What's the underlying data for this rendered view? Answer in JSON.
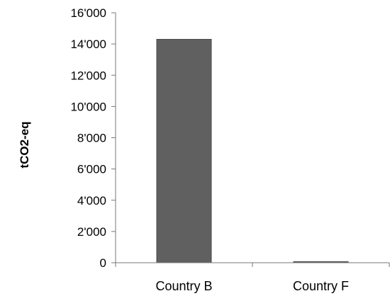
{
  "chart_data": {
    "type": "bar",
    "title": "",
    "xlabel": "",
    "ylabel": "tCO2-eq",
    "categories": [
      "Country B",
      "Country F"
    ],
    "values": [
      14300,
      30
    ],
    "ylim": [
      0,
      16000
    ],
    "yticks": [
      "0",
      "2'000",
      "4'000",
      "6'000",
      "8'000",
      "10'000",
      "12'000",
      "14'000",
      "16'000"
    ],
    "grid": false,
    "legend": "none",
    "bar_color": "#606060",
    "bar_edge_color": "#4a4a4a"
  }
}
